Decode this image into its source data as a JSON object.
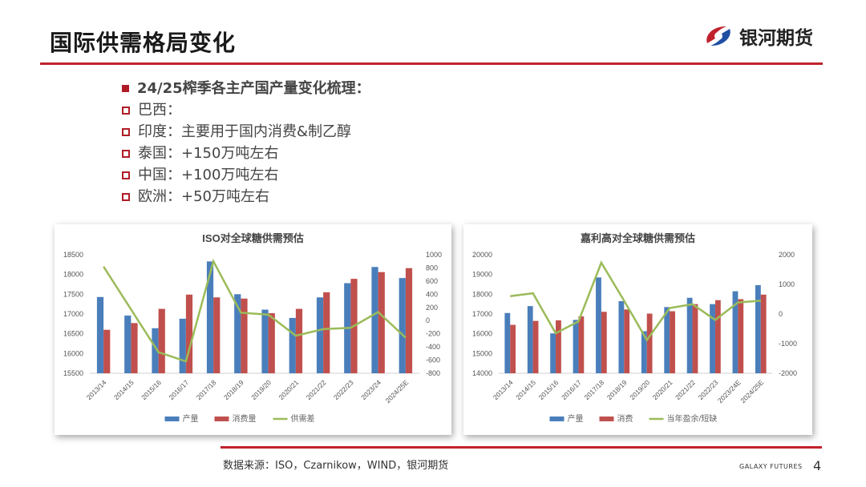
{
  "header": {
    "title": "国际供需格局变化",
    "brand": "银河期货"
  },
  "bullets": [
    {
      "text": "24/25榨季各主产国产量变化梳理：",
      "head": true
    },
    {
      "text": "巴西："
    },
    {
      "text": "印度：主要用于国内消费&制乙醇"
    },
    {
      "text": "泰国：+150万吨左右"
    },
    {
      "text": "中国：+100万吨左右"
    },
    {
      "text": "欧洲：+50万吨左右"
    }
  ],
  "colors": {
    "accent": "#c0222d",
    "bar1": "#4a7ebb",
    "bar2": "#c0504d",
    "line": "#9bbb59"
  },
  "chart_data": [
    {
      "type": "bar",
      "title": "ISO对全球糖供需预估",
      "categories": [
        "2013/14",
        "2014/15",
        "2015/16",
        "2016/17",
        "2017/18",
        "2018/19",
        "2019/20",
        "2020/21",
        "2021/22",
        "2022/23",
        "2023/24",
        "2024/25E"
      ],
      "ylim": [
        15500,
        18500
      ],
      "yticks": [
        15500,
        16000,
        16500,
        17000,
        17500,
        18000,
        18500
      ],
      "y2lim": [
        -800,
        1000
      ],
      "y2ticks": [
        -800,
        -600,
        -400,
        -200,
        0,
        200,
        400,
        600,
        800,
        1000
      ],
      "series": [
        {
          "name": "产量",
          "type": "bar",
          "values": [
            17430,
            16960,
            16640,
            16880,
            18330,
            17500,
            17110,
            16900,
            17420,
            17780,
            18190,
            17910
          ]
        },
        {
          "name": "消费量",
          "type": "bar",
          "values": [
            16600,
            16770,
            17130,
            17490,
            17420,
            17390,
            17020,
            17130,
            17550,
            17890,
            18060,
            18160
          ]
        },
        {
          "name": "供需差",
          "type": "line",
          "axis": "right",
          "values": [
            820,
            170,
            -480,
            -620,
            900,
            120,
            90,
            -230,
            -130,
            -110,
            130,
            -260
          ]
        }
      ],
      "legend": "bottom"
    },
    {
      "type": "bar",
      "title": "嘉利高对全球糖供需预估",
      "categories": [
        "2013/14",
        "2014/15",
        "2015/16",
        "2016/17",
        "2017/18",
        "2018/19",
        "2019/20",
        "2020/21",
        "2021/22",
        "2022/23",
        "2023/24E",
        "2024/25E"
      ],
      "ylim": [
        14000,
        20000
      ],
      "yticks": [
        14000,
        15000,
        16000,
        17000,
        18000,
        19000,
        20000
      ],
      "y2lim": [
        -2000,
        2000
      ],
      "y2ticks": [
        -2000,
        -1000,
        0,
        1000,
        2000
      ],
      "series": [
        {
          "name": "产量",
          "type": "bar",
          "values": [
            17050,
            17400,
            16020,
            16700,
            18850,
            17650,
            16130,
            17350,
            17820,
            17500,
            18150,
            18460
          ]
        },
        {
          "name": "消费",
          "type": "bar",
          "values": [
            16450,
            16650,
            16680,
            16880,
            17110,
            17230,
            17020,
            17140,
            17500,
            17700,
            17750,
            17980
          ]
        },
        {
          "name": "当年盈余/短缺",
          "type": "line",
          "axis": "right",
          "values": [
            600,
            700,
            -650,
            -250,
            1730,
            450,
            -880,
            200,
            330,
            -200,
            390,
            450
          ]
        }
      ],
      "legend": "bottom"
    }
  ],
  "footer": {
    "source": "数据来源：ISO，Czarnikow，WIND，银河期货",
    "galaxy": "GALAXY FUTURES",
    "page": "4"
  }
}
